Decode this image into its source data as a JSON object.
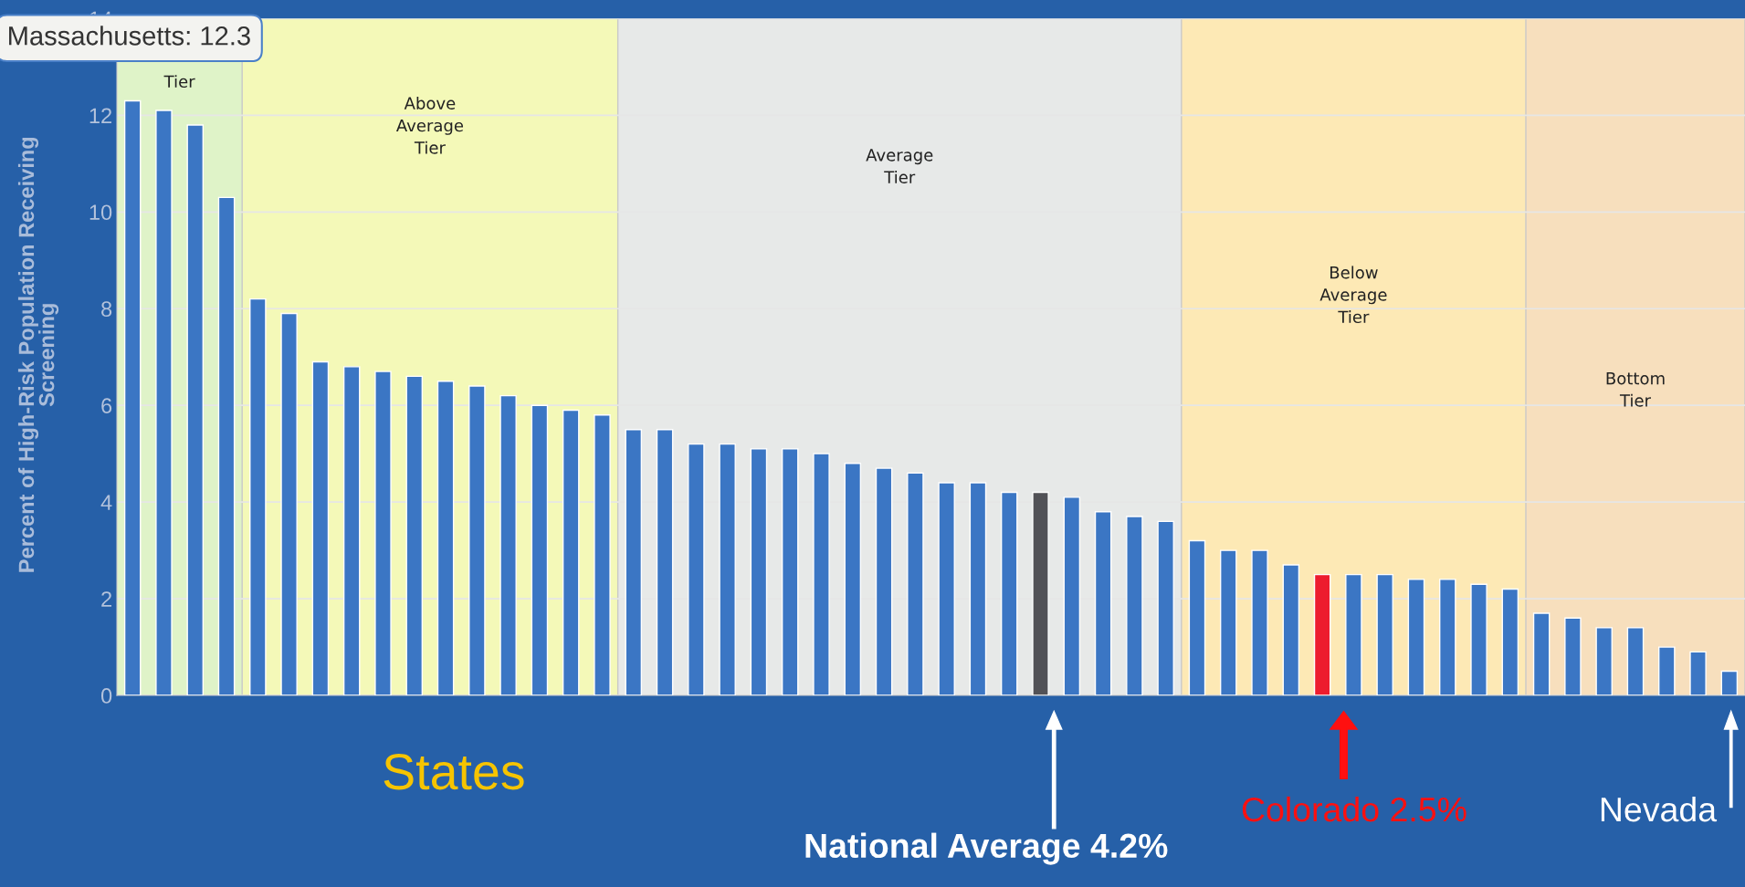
{
  "chart_data": {
    "type": "bar",
    "xlabel": "States",
    "ylabel": "Percent of High-Risk Population Receiving\nScreening",
    "categories": [
      null,
      null,
      null,
      null,
      null,
      null,
      null,
      null,
      null,
      null,
      null,
      null,
      null,
      null,
      null,
      null,
      null,
      null,
      null,
      null,
      null,
      null,
      null,
      null,
      null,
      null,
      null,
      null,
      null,
      null,
      null,
      null,
      null,
      null,
      null,
      null,
      null,
      null,
      null,
      null,
      null,
      null,
      null,
      null,
      null,
      null,
      null,
      null,
      null,
      null,
      null,
      null
    ],
    "values": [
      12.3,
      12.1,
      11.8,
      10.3,
      8.2,
      7.9,
      6.9,
      6.8,
      6.7,
      6.6,
      6.5,
      6.4,
      6.2,
      6.0,
      5.9,
      5.8,
      5.5,
      5.5,
      5.2,
      5.2,
      5.1,
      5.1,
      5.0,
      4.8,
      4.7,
      4.6,
      4.4,
      4.4,
      4.2,
      4.2,
      4.1,
      3.8,
      3.7,
      3.6,
      3.2,
      3.0,
      3.0,
      2.7,
      2.5,
      2.5,
      2.5,
      2.4,
      2.4,
      2.3,
      2.2,
      1.7,
      1.6,
      1.4,
      1.4,
      1.0,
      0.9,
      0.5
    ],
    "colors": [
      "#3b76c4",
      "#3b76c4",
      "#3b76c4",
      "#3b76c4",
      "#3b76c4",
      "#3b76c4",
      "#3b76c4",
      "#3b76c4",
      "#3b76c4",
      "#3b76c4",
      "#3b76c4",
      "#3b76c4",
      "#3b76c4",
      "#3b76c4",
      "#3b76c4",
      "#3b76c4",
      "#3b76c4",
      "#3b76c4",
      "#3b76c4",
      "#3b76c4",
      "#3b76c4",
      "#3b76c4",
      "#3b76c4",
      "#3b76c4",
      "#3b76c4",
      "#3b76c4",
      "#3b76c4",
      "#3b76c4",
      "#3b76c4",
      "#525257",
      "#3b76c4",
      "#3b76c4",
      "#3b76c4",
      "#3b76c4",
      "#3b76c4",
      "#3b76c4",
      "#3b76c4",
      "#3b76c4",
      "#ed1c2e",
      "#3b76c4",
      "#3b76c4",
      "#3b76c4",
      "#3b76c4",
      "#3b76c4",
      "#3b76c4",
      "#3b76c4",
      "#3b76c4",
      "#3b76c4",
      "#3b76c4",
      "#3b76c4",
      "#3b76c4",
      "#3b76c4"
    ],
    "ylim": [
      0,
      14
    ],
    "yticks": [
      0,
      2,
      4,
      6,
      8,
      10,
      12,
      14
    ],
    "grid": "y",
    "annotations": [
      "Tier",
      "Above\nAverage\nTier",
      "Average\nTier",
      "Below\nAverage\nTier",
      "Bottom\nTier",
      "Massachusetts: 12.3",
      "National Average 4.2%",
      "Colorado 2.5%",
      "Nevada"
    ]
  }
}
